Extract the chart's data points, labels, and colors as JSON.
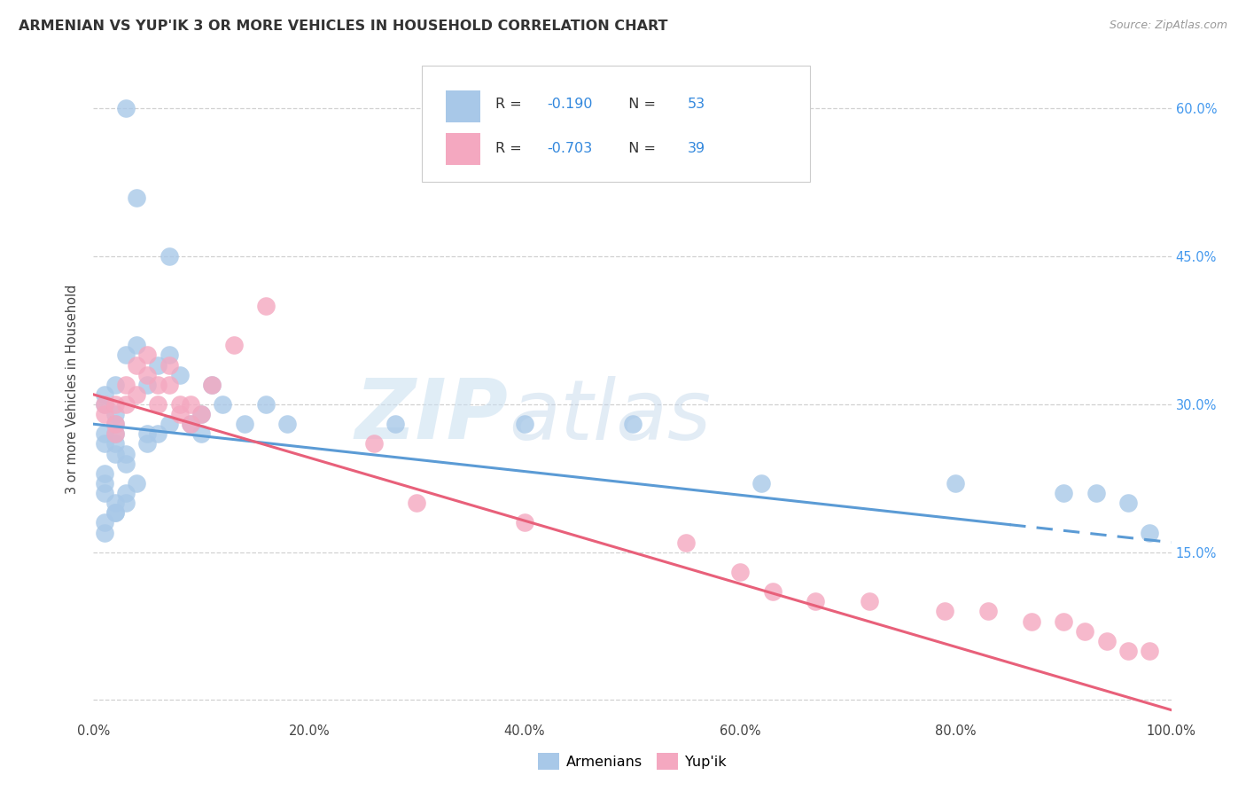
{
  "title": "ARMENIAN VS YUP'IK 3 OR MORE VEHICLES IN HOUSEHOLD CORRELATION CHART",
  "source": "Source: ZipAtlas.com",
  "ylabel": "3 or more Vehicles in Household",
  "xlim": [
    0,
    100
  ],
  "ylim": [
    -2,
    65
  ],
  "xtick_vals": [
    0,
    20,
    40,
    60,
    80,
    100
  ],
  "xticklabels": [
    "0.0%",
    "20.0%",
    "40.0%",
    "60.0%",
    "80.0%",
    "100.0%"
  ],
  "ytick_vals": [
    0,
    15,
    30,
    45,
    60
  ],
  "yticklabels_right": [
    "15.0%",
    "30.0%",
    "45.0%",
    "60.0%"
  ],
  "ytick_right_vals": [
    15,
    30,
    45,
    60
  ],
  "legend_line1": "R =  -0.190   N = 53",
  "legend_line2": "R =  -0.703   N = 39",
  "armenian_color": "#a8c8e8",
  "yupik_color": "#f4a8c0",
  "arm_line_color": "#5b9bd5",
  "yup_line_color": "#e8607a",
  "grid_color": "#cccccc",
  "bg_color": "#ffffff",
  "watermark_zip": "ZIP",
  "watermark_atlas": "atlas",
  "arm_R": "-0.190",
  "arm_N": "53",
  "yup_R": "-0.703",
  "yup_N": "39",
  "arm_x": [
    3,
    4,
    7,
    1,
    2,
    1,
    2,
    2,
    3,
    1,
    1,
    1,
    2,
    2,
    1,
    2,
    1,
    3,
    4,
    5,
    6,
    7,
    8,
    9,
    10,
    10,
    11,
    12,
    14,
    16,
    18,
    5,
    4,
    3,
    2,
    2,
    3,
    5,
    6,
    7,
    28,
    40,
    50,
    62,
    80,
    90,
    93,
    96,
    98,
    3,
    2,
    1,
    1
  ],
  "arm_y": [
    60,
    51,
    45,
    30,
    29,
    27,
    26,
    25,
    24,
    23,
    22,
    21,
    28,
    27,
    26,
    32,
    31,
    35,
    36,
    32,
    34,
    35,
    33,
    28,
    27,
    29,
    32,
    30,
    28,
    30,
    28,
    26,
    22,
    21,
    20,
    19,
    25,
    27,
    27,
    28,
    28,
    28,
    28,
    22,
    22,
    21,
    21,
    20,
    17,
    20,
    19,
    18,
    17
  ],
  "yup_x": [
    1,
    1,
    2,
    2,
    2,
    3,
    3,
    4,
    4,
    5,
    5,
    6,
    6,
    7,
    7,
    8,
    8,
    9,
    9,
    10,
    11,
    13,
    16,
    26,
    30,
    40,
    55,
    60,
    63,
    67,
    72,
    79,
    83,
    87,
    90,
    92,
    94,
    96,
    98
  ],
  "yup_y": [
    30,
    29,
    30,
    28,
    27,
    32,
    30,
    34,
    31,
    35,
    33,
    32,
    30,
    34,
    32,
    30,
    29,
    28,
    30,
    29,
    32,
    36,
    40,
    26,
    20,
    18,
    16,
    13,
    11,
    10,
    10,
    9,
    9,
    8,
    8,
    7,
    6,
    5,
    5
  ],
  "arm_trend_x0": 0,
  "arm_trend_x1": 100,
  "arm_trend_y0": 28.0,
  "arm_trend_y1": 16.0,
  "arm_dash_start": 85,
  "yup_trend_x0": 0,
  "yup_trend_x1": 100,
  "yup_trend_y0": 31.0,
  "yup_trend_y1": -1.0
}
